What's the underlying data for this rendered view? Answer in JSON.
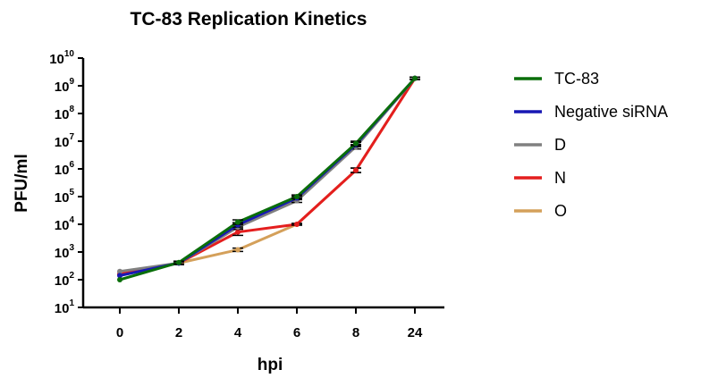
{
  "chart_data": {
    "type": "line",
    "title": "TC-83 Replication Kinetics",
    "xlabel": "hpi",
    "ylabel": "PFU/ml",
    "categories": [
      "0",
      "2",
      "4",
      "6",
      "8",
      "24"
    ],
    "y_scale": "log10",
    "ylim": [
      1,
      10
    ],
    "y_ticks": [
      {
        "base": "10",
        "exp": "1"
      },
      {
        "base": "10",
        "exp": "2"
      },
      {
        "base": "10",
        "exp": "3"
      },
      {
        "base": "10",
        "exp": "4"
      },
      {
        "base": "10",
        "exp": "5"
      },
      {
        "base": "10",
        "exp": "6"
      },
      {
        "base": "10",
        "exp": "7"
      },
      {
        "base": "10",
        "exp": "8"
      },
      {
        "base": "10",
        "exp": "9"
      },
      {
        "base": "10",
        "exp": "10"
      }
    ],
    "grid": false,
    "legend": "right",
    "series": [
      {
        "name": "O",
        "color": "#d4a05a",
        "log_values": [
          2.2,
          2.6,
          3.08,
          4.0,
          5.95,
          9.27
        ],
        "log_err": [
          0,
          0.05,
          0.06,
          0.03,
          0.08,
          0.04
        ]
      },
      {
        "name": "N",
        "color": "#e41e1e",
        "log_values": [
          2.2,
          2.6,
          3.72,
          4.0,
          5.95,
          9.27
        ],
        "log_err": [
          0,
          0.05,
          0.12,
          0.03,
          0.08,
          0.04
        ]
      },
      {
        "name": "D",
        "color": "#808080",
        "log_values": [
          2.3,
          2.6,
          3.9,
          4.85,
          6.8,
          9.27
        ],
        "log_err": [
          0,
          0.05,
          0.08,
          0.06,
          0.08,
          0.04
        ]
      },
      {
        "name": "Negative siRNA",
        "color": "#1818b4",
        "log_values": [
          2.15,
          2.6,
          3.98,
          4.95,
          6.88,
          9.27
        ],
        "log_err": [
          0,
          0.05,
          0.08,
          0.06,
          0.08,
          0.04
        ]
      },
      {
        "name": "TC-83",
        "color": "#0a6e0a",
        "log_values": [
          2.0,
          2.62,
          4.08,
          5.0,
          6.92,
          9.27
        ],
        "log_err": [
          0,
          0.05,
          0.08,
          0.06,
          0.08,
          0.04
        ]
      }
    ],
    "legend_order": [
      "TC-83",
      "Negative siRNA",
      "D",
      "N",
      "O"
    ]
  }
}
